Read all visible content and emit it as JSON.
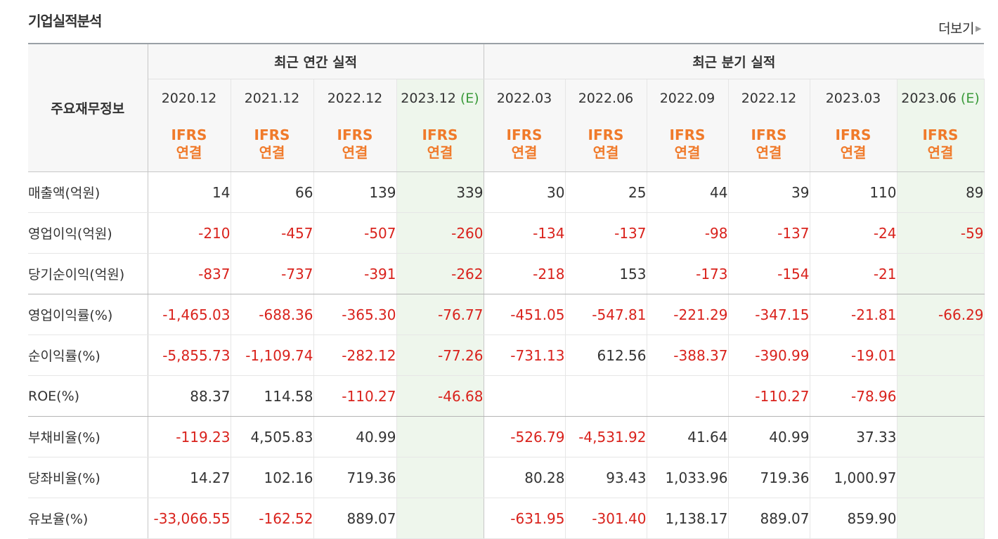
{
  "header": {
    "title": "기업실적분석",
    "more_label": "더보기",
    "more_icon": "triangle-right-icon"
  },
  "table": {
    "label_header": "주요재무정보",
    "group_annual": "최근 연간 실적",
    "group_quarterly": "최근 분기 실적",
    "estimate_mark": "(E)",
    "accounting_top": "IFRS",
    "accounting_bottom": "연결",
    "columns": [
      {
        "period": "2020.12",
        "estimate": false
      },
      {
        "period": "2021.12",
        "estimate": false
      },
      {
        "period": "2022.12",
        "estimate": false
      },
      {
        "period": "2023.12",
        "estimate": true
      },
      {
        "period": "2022.03",
        "estimate": false
      },
      {
        "period": "2022.06",
        "estimate": false
      },
      {
        "period": "2022.09",
        "estimate": false
      },
      {
        "period": "2022.12",
        "estimate": false
      },
      {
        "period": "2023.03",
        "estimate": false
      },
      {
        "period": "2023.06",
        "estimate": true
      }
    ],
    "rows": [
      {
        "label": "매출액(억원)",
        "values": [
          "14",
          "66",
          "139",
          "339",
          "30",
          "25",
          "44",
          "39",
          "110",
          "89"
        ]
      },
      {
        "label": "영업이익(억원)",
        "values": [
          "-210",
          "-457",
          "-507",
          "-260",
          "-134",
          "-137",
          "-98",
          "-137",
          "-24",
          "-59"
        ]
      },
      {
        "label": "당기순이익(억원)",
        "values": [
          "-837",
          "-737",
          "-391",
          "-262",
          "-218",
          "153",
          "-173",
          "-154",
          "-21",
          ""
        ]
      },
      {
        "label": "영업이익률(%)",
        "values": [
          "-1,465.03",
          "-688.36",
          "-365.30",
          "-76.77",
          "-451.05",
          "-547.81",
          "-221.29",
          "-347.15",
          "-21.81",
          "-66.29"
        ]
      },
      {
        "label": "순이익률(%)",
        "values": [
          "-5,855.73",
          "-1,109.74",
          "-282.12",
          "-77.26",
          "-731.13",
          "612.56",
          "-388.37",
          "-390.99",
          "-19.01",
          ""
        ]
      },
      {
        "label": "ROE(%)",
        "values": [
          "88.37",
          "114.58",
          "-110.27",
          "-46.68",
          "",
          "",
          "",
          "-110.27",
          "-78.96",
          ""
        ]
      },
      {
        "label": "부채비율(%)",
        "values": [
          "-119.23",
          "4,505.83",
          "40.99",
          "",
          "-526.79",
          "-4,531.92",
          "41.64",
          "40.99",
          "37.33",
          ""
        ]
      },
      {
        "label": "당좌비율(%)",
        "values": [
          "14.27",
          "102.16",
          "719.36",
          "",
          "80.28",
          "93.43",
          "1,033.96",
          "719.36",
          "1,000.97",
          ""
        ]
      },
      {
        "label": "유보율(%)",
        "values": [
          "-33,066.55",
          "-162.52",
          "889.07",
          "",
          "-631.95",
          "-301.40",
          "1,138.17",
          "889.07",
          "859.90",
          ""
        ]
      }
    ]
  },
  "colors": {
    "negative": "#d9221c",
    "accounting": "#f07a2a",
    "estimate_bg": "#eef6ec",
    "estimate_mark": "#3a9a3a"
  }
}
